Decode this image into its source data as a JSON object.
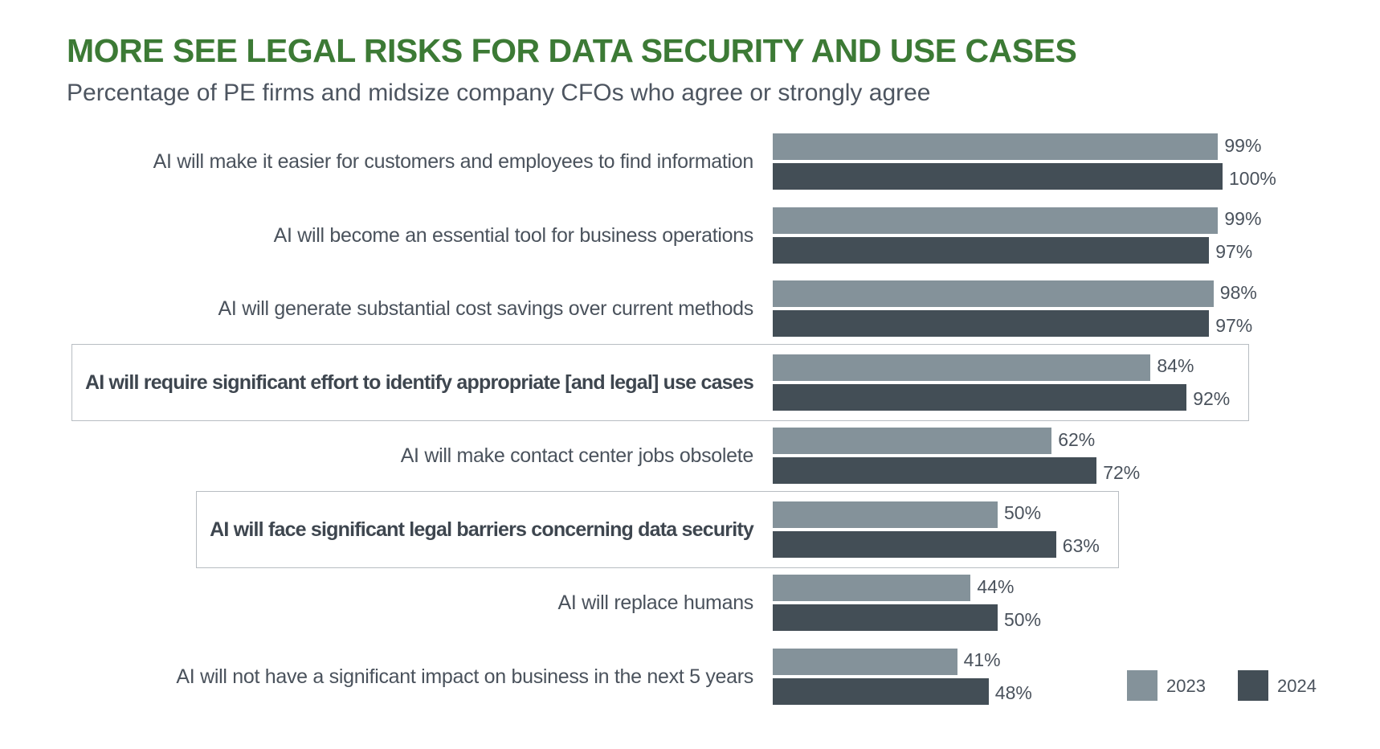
{
  "title": "MORE SEE LEGAL RISKS FOR DATA SECURITY AND USE CASES",
  "subtitle": "Percentage of PE firms and midsize company CFOs who agree or strongly agree",
  "colors": {
    "title": "#3c7a35",
    "series_2023": "#84929a",
    "series_2024": "#434e56",
    "highlight_box": "#b8bdc2"
  },
  "chart_data": {
    "type": "bar",
    "orientation": "horizontal",
    "title": "MORE SEE LEGAL RISKS FOR DATA SECURITY AND USE CASES",
    "subtitle": "Percentage of PE firms and midsize company CFOs who agree or strongly agree",
    "categories": [
      "AI will make it easier for customers and employees to find information",
      "AI will become an essential tool for business operations",
      "AI will generate substantial cost savings over current methods",
      "AI will require significant effort to identify appropriate [and legal] use cases",
      "AI will make contact center jobs obsolete",
      "AI will face significant legal barriers concerning data security",
      "AI will replace humans",
      "AI will not have a significant impact on business in the next 5 years"
    ],
    "highlighted": [
      3,
      5
    ],
    "series": [
      {
        "name": "2023",
        "color": "#84929a",
        "values": [
          99,
          99,
          98,
          84,
          62,
          50,
          44,
          41
        ],
        "labels": [
          "99%",
          "99%",
          "98%",
          "84%",
          "62%",
          "50%",
          "44%",
          "41%"
        ]
      },
      {
        "name": "2024",
        "color": "#434e56",
        "values": [
          100,
          97,
          97,
          92,
          72,
          63,
          50,
          48
        ],
        "labels": [
          "100%",
          "97%",
          "97%",
          "92%",
          "72%",
          "63%",
          "50%",
          "48%"
        ]
      }
    ],
    "xlim": [
      0,
      100
    ],
    "legend_position": "bottom-right",
    "grid": false
  }
}
